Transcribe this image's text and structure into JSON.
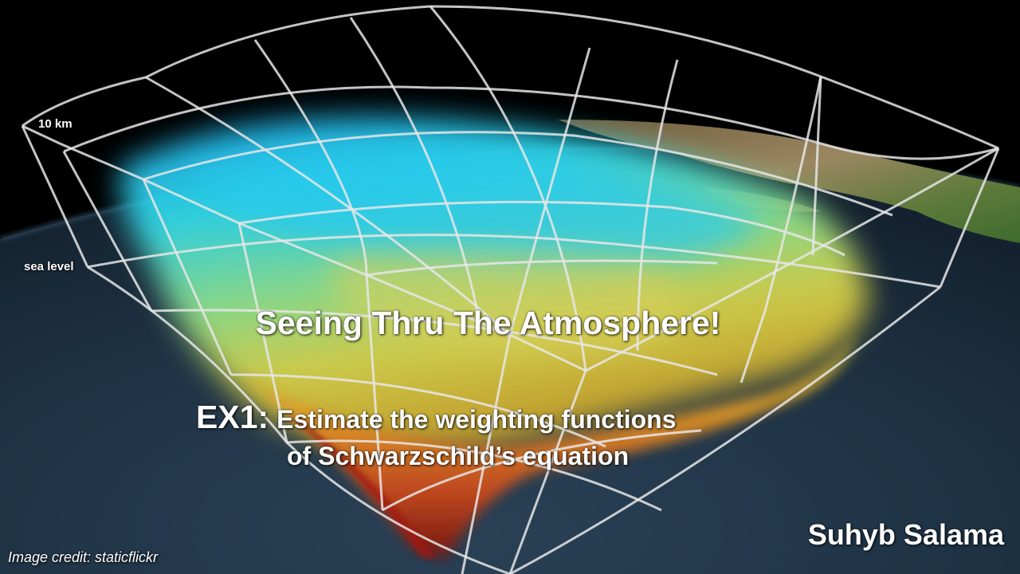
{
  "labels": {
    "top_altitude": "10 km",
    "bottom_altitude": "sea level"
  },
  "slide": {
    "title": "Seeing Thru The Atmosphere!",
    "exercise_label": "EX1:",
    "exercise_line1": "Estimate the weighting functions",
    "exercise_line2": "of Schwarzschild’s equation",
    "author": "Suhyb Salama",
    "image_credit": "Image credit: staticflickr"
  },
  "colors": {
    "space": "#000000",
    "ocean": "#1d3040",
    "land": "#8c7a55",
    "grid": "#e6e6e6",
    "text": "#ffffff"
  }
}
